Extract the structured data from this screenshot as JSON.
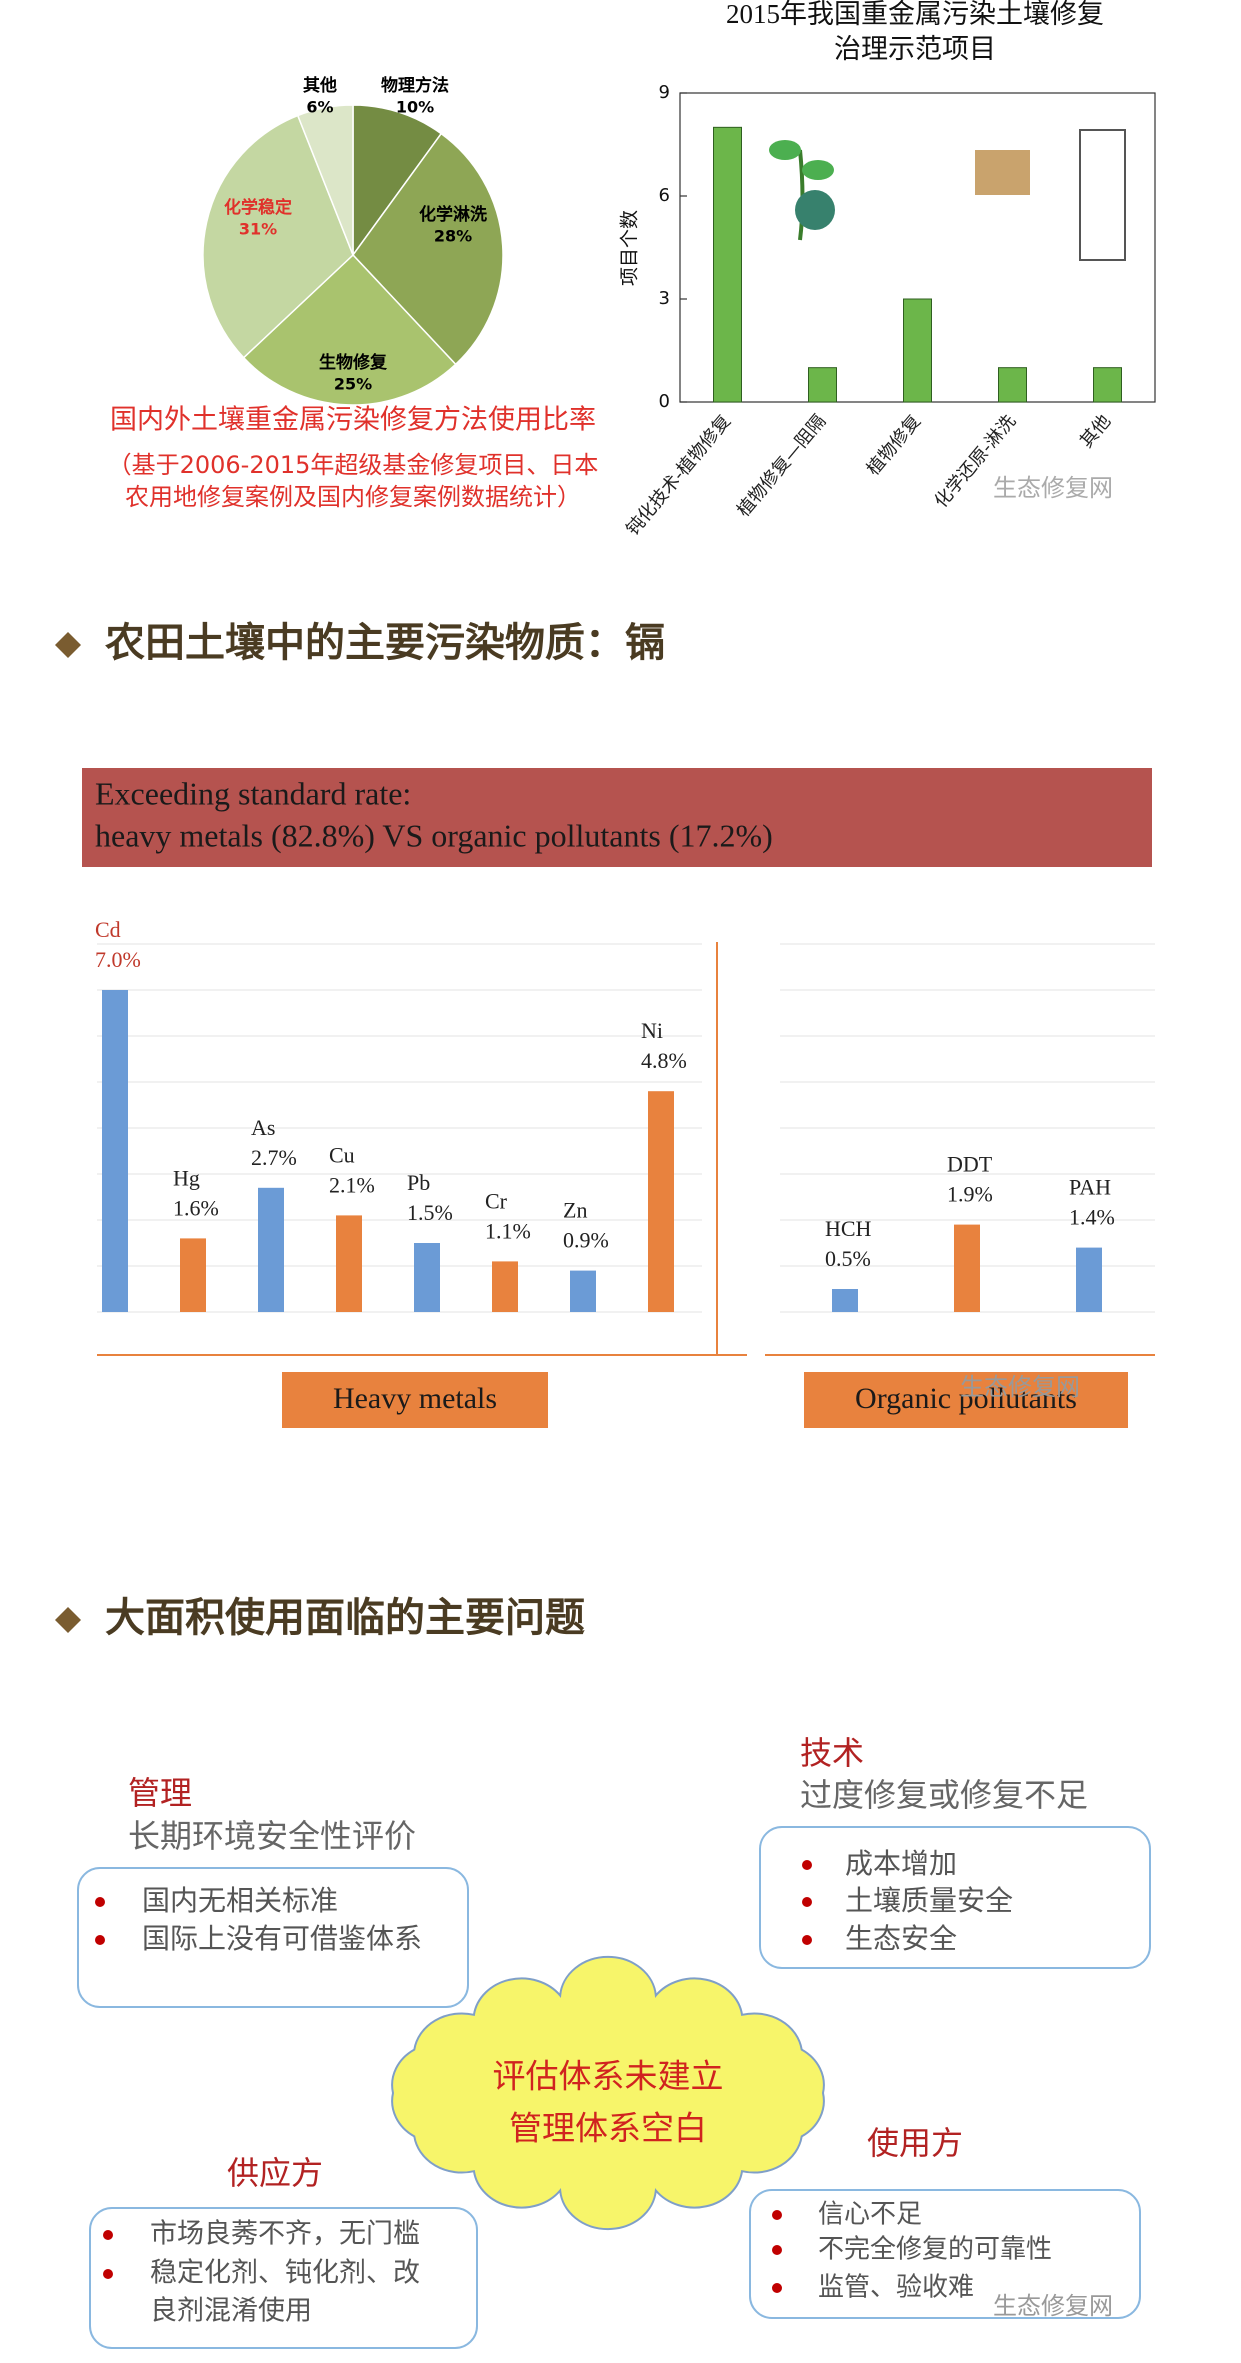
{
  "chart_data": [
    {
      "type": "pie",
      "caption": "国内外土壤重金属污染修复方法使用比率",
      "note": [
        "（基于2006-2015年超级基金修复项目、日本",
        "农用地修复案例及国内修复案例数据统计）"
      ],
      "categories": [
        "物理方法",
        "化学淋洗",
        "生物修复",
        "化学稳定",
        "其他"
      ],
      "values": [
        10,
        28,
        25,
        31,
        6
      ],
      "value_labels": [
        "10%",
        "28%",
        "25%",
        "31%",
        "6%"
      ],
      "colors": [
        "#748c43",
        "#8ea655",
        "#a9c36e",
        "#c4d7a2",
        "#dce6c8"
      ],
      "label_colors": [
        "#000000",
        "#000000",
        "#000000",
        "#e0312b",
        "#000000"
      ]
    },
    {
      "type": "bar",
      "title": [
        "2015年我国重金属污染土壤修复",
        "治理示范项目"
      ],
      "ylabel": "项目个数",
      "categories": [
        "钝化技术-植物修复",
        "植物修复—阻隔",
        "植物修复",
        "化学还原-淋洗",
        "其他"
      ],
      "values": [
        8,
        1,
        3,
        1,
        1
      ],
      "color": "#6cb64a",
      "ylim": [
        0,
        9
      ],
      "yticks": [
        0,
        3,
        6,
        9
      ]
    },
    {
      "type": "bar",
      "group_label": "Heavy metals",
      "categories": [
        "Cd",
        "Hg",
        "As",
        "Cu",
        "Pb",
        "Cr",
        "Zn",
        "Ni"
      ],
      "values": [
        7.0,
        1.6,
        2.7,
        2.1,
        1.5,
        1.1,
        0.9,
        4.8
      ],
      "value_labels": [
        "7.0%",
        "1.6%",
        "2.7%",
        "2.1%",
        "1.5%",
        "1.1%",
        "0.9%",
        "4.8%"
      ],
      "colors": [
        "#6b9bd6",
        "#e8823e",
        "#6b9bd6",
        "#e8823e",
        "#6b9bd6",
        "#e8823e",
        "#6b9bd6",
        "#e8823e"
      ],
      "label_colors": [
        "#c0392b",
        "#222222",
        "#222222",
        "#222222",
        "#222222",
        "#222222",
        "#222222",
        "#222222"
      ],
      "ylim": [
        0,
        8
      ],
      "yticks": [
        0,
        1,
        2,
        3,
        4,
        5,
        6,
        7,
        8
      ],
      "grid": true
    },
    {
      "type": "bar",
      "group_label": "Organic pollutants",
      "categories": [
        "HCH",
        "DDT",
        "PAH"
      ],
      "values": [
        0.5,
        1.9,
        1.4
      ],
      "value_labels": [
        "0.5%",
        "1.9%",
        "1.4%"
      ],
      "colors": [
        "#6b9bd6",
        "#e8823e",
        "#6b9bd6"
      ],
      "label_colors": [
        "#222222",
        "#222222",
        "#222222"
      ],
      "ylim": [
        0,
        8
      ],
      "yticks": [
        0,
        1,
        2,
        3,
        4,
        5,
        6,
        7,
        8
      ],
      "grid": true
    }
  ],
  "headings": [
    "农田土壤中的主要污染物质：镉",
    "大面积使用面临的主要问题"
  ],
  "banner": [
    "Exceeding standard rate:",
    "heavy metals (82.8%) VS organic pollutants (17.2%)"
  ],
  "problems": [
    {
      "title": "管理",
      "subtitle": "长期环境安全性评价",
      "items": [
        [
          "国内无相关标准"
        ],
        [
          "国际上没有可借鉴体系"
        ]
      ]
    },
    {
      "title": "技术",
      "subtitle": "过度修复或修复不足",
      "items": [
        [
          "成本增加"
        ],
        [
          "土壤质量安全"
        ],
        [
          "生态安全"
        ]
      ]
    },
    {
      "title": "供应方",
      "items": [
        [
          "市场良莠不齐，无门槛"
        ],
        [
          "稳定化剂、钝化剂、改",
          "良剂混淆使用"
        ]
      ]
    },
    {
      "title": "使用方",
      "items": [
        [
          "信心不足"
        ],
        [
          "不完全修复的可靠性"
        ],
        [
          "监管、验收难"
        ]
      ]
    }
  ],
  "cloud": [
    "评估体系未建立",
    "管理体系空白"
  ],
  "watermark": "生态修复网"
}
